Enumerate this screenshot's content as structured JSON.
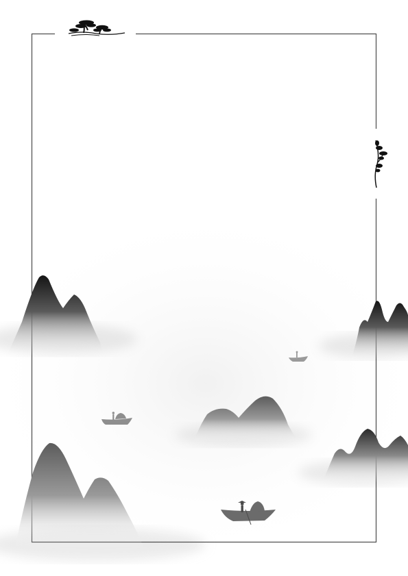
{
  "page": {
    "style": "ink-wash landscape border",
    "background_color": "#ffffff",
    "frame_color": "#4a4a4a",
    "ink_dark": "#1a1a1a",
    "ink_mid": "#6e6e6e",
    "mist_color": "#ffffff"
  },
  "ornaments": [
    {
      "name": "pine-tree-icon",
      "placement": "top-left"
    },
    {
      "name": "pine-tree-icon",
      "placement": "right-upper"
    }
  ],
  "scenery": {
    "mountains": 5,
    "boats": 3
  }
}
